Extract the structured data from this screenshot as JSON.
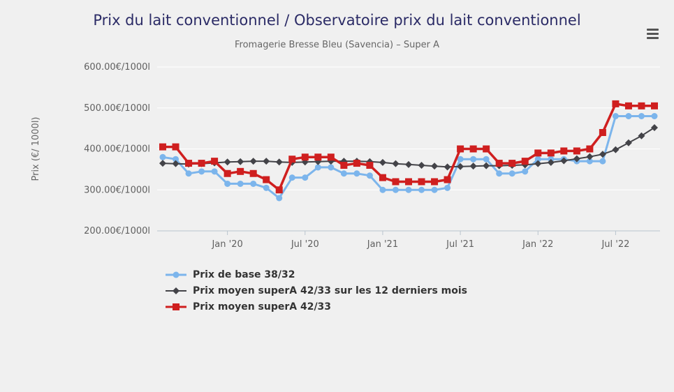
{
  "page": {
    "background_color": "#f0f0f0",
    "title_color": "#2b2b66",
    "subtitle_color": "#666666",
    "axis_label_color": "#606060",
    "gridline_color": "#ffffff",
    "menu_icon": "hamburger-icon"
  },
  "chart_data": {
    "type": "line",
    "title": "Prix du lait conventionnel / Observatoire prix du lait conventionnel",
    "subtitle": "Fromagerie Bresse Bleu (Savencia) – Super A",
    "xlabel": "",
    "ylabel": "Prix (€/ 1000l)",
    "ylim": [
      200,
      600
    ],
    "y_ticks": [
      200,
      300,
      400,
      500,
      600
    ],
    "y_tick_labels": [
      "200.00€/1000l",
      "300.00€/1000l",
      "400.00€/1000l",
      "500.00€/1000l",
      "600.00€/1000l"
    ],
    "grid": true,
    "legend_position": "bottom-left",
    "x": [
      "Aug '19",
      "Sep '19",
      "Oct '19",
      "Nov '19",
      "Dec '19",
      "Jan '20",
      "Feb '20",
      "Mar '20",
      "Apr '20",
      "May '20",
      "Jun '20",
      "Jul '20",
      "Aug '20",
      "Sep '20",
      "Oct '20",
      "Nov '20",
      "Dec '20",
      "Jan '21",
      "Feb '21",
      "Mar '21",
      "Apr '21",
      "May '21",
      "Jun '21",
      "Jul '21",
      "Aug '21",
      "Sep '21",
      "Oct '21",
      "Nov '21",
      "Dec '21",
      "Jan '22",
      "Feb '22",
      "Mar '22",
      "Apr '22",
      "May '22",
      "Jun '22",
      "Jul '22",
      "Aug '22",
      "Sep '22",
      "Oct '22"
    ],
    "x_ticks": [
      {
        "index": 5,
        "label": "Jan '20"
      },
      {
        "index": 11,
        "label": "Jul '20"
      },
      {
        "index": 17,
        "label": "Jan '21"
      },
      {
        "index": 23,
        "label": "Jul '21"
      },
      {
        "index": 29,
        "label": "Jan '22"
      },
      {
        "index": 35,
        "label": "Jul '22"
      }
    ],
    "series": [
      {
        "name": "Prix de base 38/32",
        "color": "#7cb5ec",
        "marker": "circle",
        "line_width": 3,
        "values": [
          380,
          375,
          340,
          345,
          345,
          315,
          315,
          315,
          305,
          280,
          330,
          330,
          355,
          355,
          340,
          340,
          335,
          300,
          300,
          300,
          300,
          300,
          305,
          375,
          375,
          375,
          340,
          340,
          345,
          375,
          375,
          375,
          370,
          370,
          370,
          480,
          480,
          480,
          480
        ]
      },
      {
        "name": "Prix moyen superA 42/33 sur les 12 derniers mois",
        "color": "#434348",
        "marker": "diamond",
        "line_width": 2,
        "values": [
          365,
          364,
          363,
          364,
          366,
          368,
          369,
          370,
          370,
          368,
          367,
          368,
          369,
          370,
          370,
          370,
          369,
          367,
          364,
          362,
          360,
          358,
          356,
          357,
          358,
          359,
          359,
          360,
          361,
          364,
          367,
          371,
          376,
          381,
          387,
          398,
          415,
          432,
          452
        ]
      },
      {
        "name": "Prix moyen superA 42/33",
        "color": "#cf1f1f",
        "marker": "square",
        "line_width": 3.5,
        "values": [
          405,
          405,
          365,
          365,
          370,
          340,
          345,
          340,
          325,
          300,
          375,
          380,
          380,
          380,
          360,
          365,
          360,
          330,
          320,
          320,
          320,
          320,
          325,
          400,
          400,
          400,
          365,
          365,
          370,
          390,
          390,
          395,
          395,
          400,
          440,
          510,
          505,
          505,
          505
        ]
      }
    ]
  }
}
